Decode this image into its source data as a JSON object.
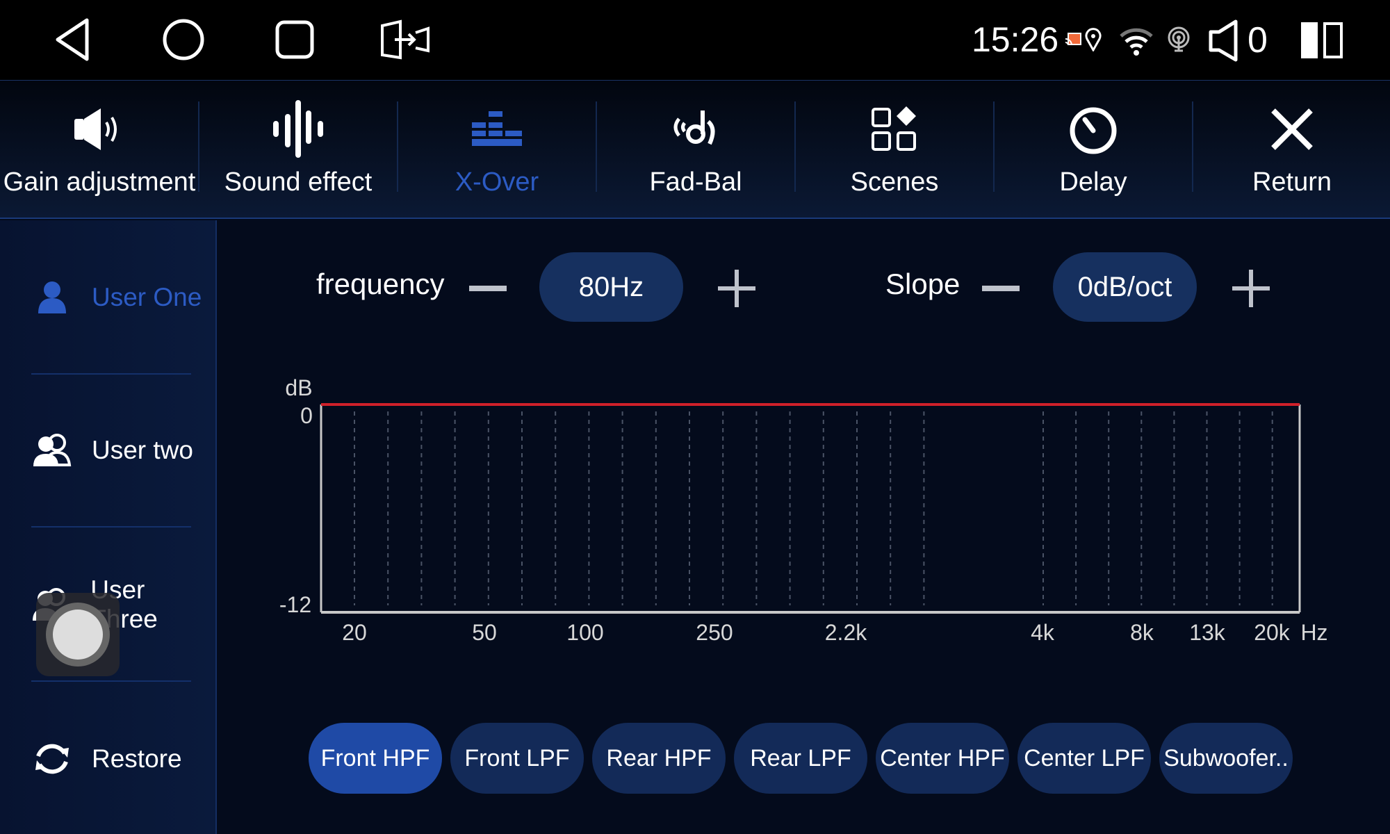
{
  "status_bar": {
    "time": "15:26",
    "volume": "0",
    "icons": [
      "back-icon",
      "home-icon",
      "recents-icon",
      "screen-mirror-icon",
      "cast-icon",
      "location-icon",
      "wifi-icon",
      "hotspot-icon",
      "volume-icon",
      "split-screen-icon"
    ]
  },
  "tabs": [
    {
      "label": "Gain adjustment",
      "icon": "speaker-icon"
    },
    {
      "label": "Sound effect",
      "icon": "waveform-icon"
    },
    {
      "label": "X-Over",
      "icon": "equalizer-icon",
      "active": true
    },
    {
      "label": "Fad-Bal",
      "icon": "fader-balance-icon"
    },
    {
      "label": "Scenes",
      "icon": "scenes-icon"
    },
    {
      "label": "Delay",
      "icon": "timer-icon"
    },
    {
      "label": "Return",
      "icon": "close-icon"
    }
  ],
  "sidebar": {
    "items": [
      {
        "label": "User One",
        "active": true
      },
      {
        "label": "User two"
      },
      {
        "label": "User Three"
      },
      {
        "label": "Restore"
      }
    ]
  },
  "controls": {
    "frequency_label": "frequency",
    "frequency_value": "80Hz",
    "slope_label": "Slope",
    "slope_value": "0dB/oct"
  },
  "channels": [
    {
      "label": "Front HPF",
      "active": true
    },
    {
      "label": "Front LPF"
    },
    {
      "label": "Rear HPF"
    },
    {
      "label": "Rear LPF"
    },
    {
      "label": "Center HPF"
    },
    {
      "label": "Center LPF"
    },
    {
      "label": "Subwoofer.."
    }
  ],
  "colors": {
    "accent": "#2c5bc4",
    "curve": "#d0202a",
    "background": "#040b1c"
  },
  "chart_data": {
    "type": "line",
    "ylabel": "dB",
    "xlabel": "Hz",
    "ylim": [
      -12,
      0
    ],
    "y_ticks": [
      "0",
      "-12"
    ],
    "x_ticks": [
      "20",
      "50",
      "100",
      "250",
      "2.2k",
      "4k",
      "8k",
      "13k",
      "20k"
    ],
    "grid": "vertical dashed",
    "series": [
      {
        "x": [
          "20",
          "20k"
        ],
        "values": [
          0,
          0
        ]
      }
    ]
  }
}
